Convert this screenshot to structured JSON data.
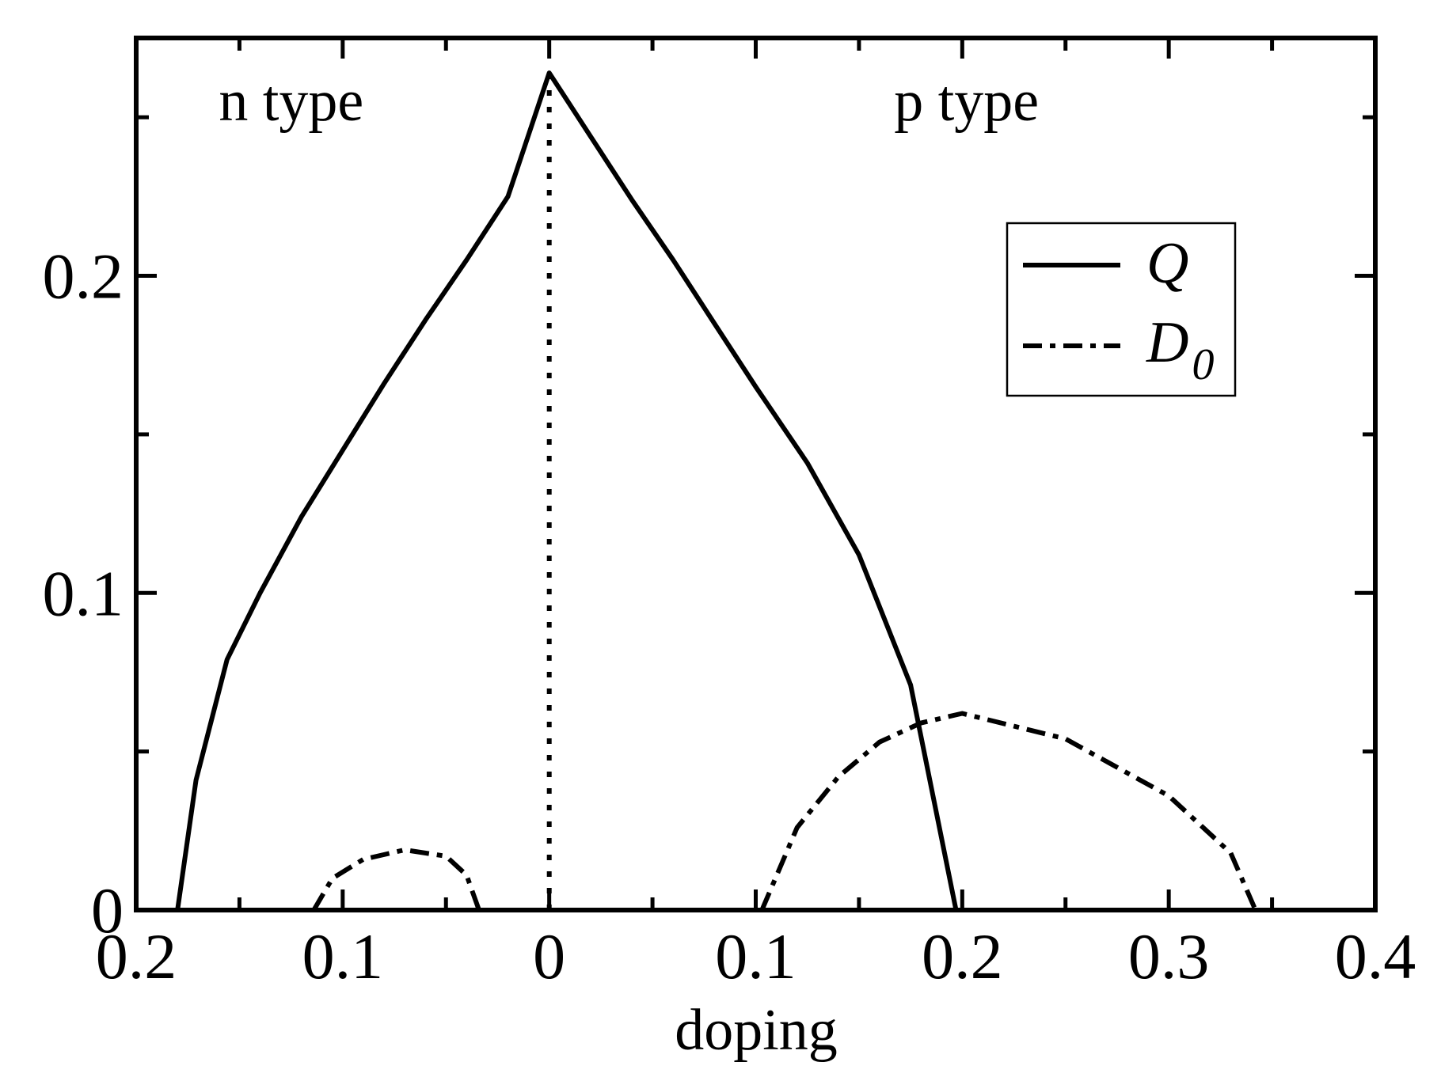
{
  "chart_data": {
    "type": "line",
    "xlabel": "doping",
    "ylabel": "",
    "xlim": [
      -0.2,
      0.4
    ],
    "ylim": [
      0,
      0.275
    ],
    "x_ticks": [
      {
        "value": -0.2,
        "label": "0.2"
      },
      {
        "value": -0.1,
        "label": "0.1"
      },
      {
        "value": 0,
        "label": "0"
      },
      {
        "value": 0.1,
        "label": "0.1"
      },
      {
        "value": 0.2,
        "label": "0.2"
      },
      {
        "value": 0.3,
        "label": "0.3"
      },
      {
        "value": 0.4,
        "label": "0.4"
      }
    ],
    "x_minor_ticks": [
      -0.15,
      -0.05,
      0.05,
      0.15,
      0.25,
      0.35
    ],
    "y_ticks": [
      {
        "value": 0,
        "label": "0"
      },
      {
        "value": 0.1,
        "label": "0.1"
      },
      {
        "value": 0.2,
        "label": "0.2"
      }
    ],
    "y_minor_ticks": [
      0.05,
      0.15,
      0.25
    ],
    "grid": false,
    "legend_position": "upper-right",
    "annotations": [
      {
        "text": "n type",
        "x": -0.16,
        "y": 0.249
      },
      {
        "text": "p type",
        "x": 0.167,
        "y": 0.249
      }
    ],
    "series": [
      {
        "name": "Q",
        "style": "solid",
        "color": "#000000",
        "points": [
          [
            -0.18,
            0
          ],
          [
            -0.171,
            0.041
          ],
          [
            -0.156,
            0.079
          ],
          [
            -0.14,
            0.1
          ],
          [
            -0.12,
            0.124
          ],
          [
            -0.1,
            0.145
          ],
          [
            -0.08,
            0.166
          ],
          [
            -0.06,
            0.186
          ],
          [
            -0.04,
            0.205
          ],
          [
            -0.02,
            0.225
          ],
          [
            0,
            0.264
          ],
          [
            0.02,
            0.244
          ],
          [
            0.04,
            0.224
          ],
          [
            0.06,
            0.205
          ],
          [
            0.08,
            0.185
          ],
          [
            0.1,
            0.165
          ],
          [
            0.125,
            0.141
          ],
          [
            0.15,
            0.112
          ],
          [
            0.175,
            0.071
          ],
          [
            0.197,
            0
          ]
        ]
      },
      {
        "name": "D_0",
        "style": "dashdot",
        "color": "#000000",
        "segments": [
          [
            [
              -0.114,
              0
            ],
            [
              -0.105,
              0.01
            ],
            [
              -0.09,
              0.016
            ],
            [
              -0.07,
              0.019
            ],
            [
              -0.05,
              0.017
            ],
            [
              -0.04,
              0.011
            ],
            [
              -0.034,
              0
            ]
          ],
          [
            [
              0.103,
              0
            ],
            [
              0.12,
              0.026
            ],
            [
              0.14,
              0.042
            ],
            [
              0.16,
              0.053
            ],
            [
              0.18,
              0.059
            ],
            [
              0.2,
              0.062
            ],
            [
              0.25,
              0.054
            ],
            [
              0.3,
              0.036
            ],
            [
              0.33,
              0.018
            ],
            [
              0.342,
              0
            ]
          ]
        ]
      },
      {
        "name": "",
        "style": "dotted",
        "color": "#000000",
        "points": [
          [
            0,
            0
          ],
          [
            0,
            0.264
          ]
        ]
      }
    ],
    "legend": {
      "entries": [
        {
          "label": "Q",
          "style": "solid"
        },
        {
          "label": "D",
          "subscript": "0",
          "style": "dashdot"
        }
      ]
    }
  }
}
